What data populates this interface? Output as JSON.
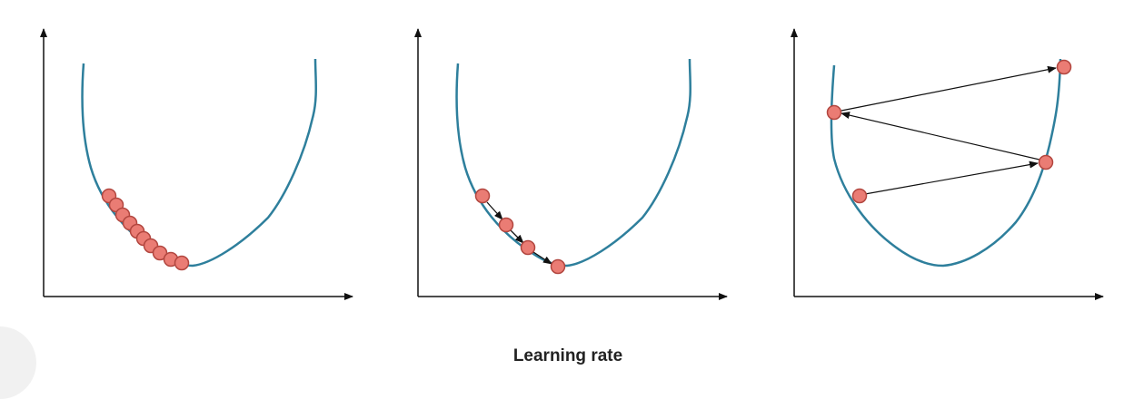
{
  "caption": "Learning rate",
  "colors": {
    "axis": "#111111",
    "curve": "#2e7f9c",
    "point_fill": "#ea7c74",
    "point_stroke": "#b2463f",
    "arrow": "#111111"
  },
  "panels": [
    {
      "name": "small-learning-rate",
      "points": 12,
      "arrows": false
    },
    {
      "name": "good-learning-rate",
      "points": 4,
      "arrows": true
    },
    {
      "name": "large-learning-rate",
      "points": 4,
      "arrows": true
    }
  ]
}
